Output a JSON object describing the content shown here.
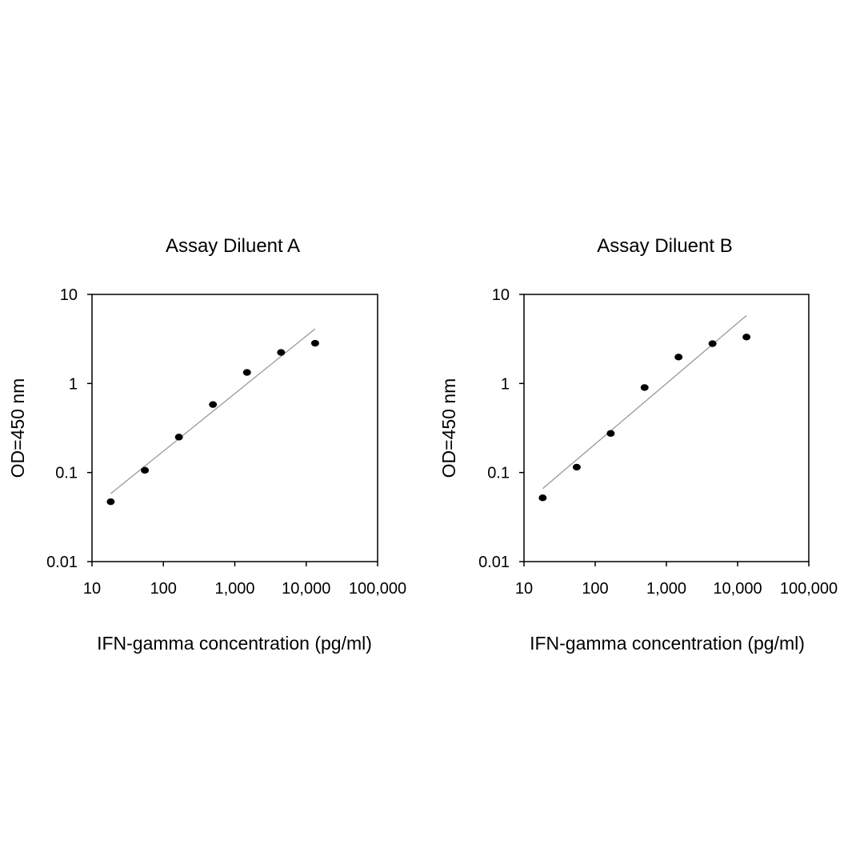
{
  "chart_data": [
    {
      "type": "scatter",
      "title": "Assay Diluent A",
      "xlabel": "IFN-gamma concentration (pg/ml)",
      "ylabel": "OD=450 nm",
      "x_scale": "log",
      "y_scale": "log",
      "xlim": [
        10,
        100000
      ],
      "ylim": [
        0.01,
        10
      ],
      "x_ticks": [
        10,
        100,
        1000,
        10000,
        100000
      ],
      "x_tick_labels": [
        "10",
        "100",
        "1,000",
        "10,000",
        "100,000"
      ],
      "y_ticks": [
        0.01,
        0.1,
        1,
        10
      ],
      "y_tick_labels": [
        "0.01",
        "0.1",
        "1",
        "10"
      ],
      "grid": false,
      "legend": "none",
      "series": [
        {
          "x": [
            18.3,
            55,
            165,
            494,
            1482,
            4444,
            13333
          ],
          "y": [
            0.047,
            0.106,
            0.25,
            0.58,
            1.33,
            2.23,
            2.83
          ]
        }
      ],
      "trendline": {
        "x": [
          18.3,
          13333
        ],
        "y": [
          0.058,
          4.1
        ]
      },
      "colors": {
        "points": "#000000",
        "trendline": "#999999",
        "axes": "#000000"
      }
    },
    {
      "type": "scatter",
      "title": "Assay Diluent B",
      "xlabel": "IFN-gamma concentration (pg/ml)",
      "ylabel": "OD=450 nm",
      "x_scale": "log",
      "y_scale": "log",
      "xlim": [
        10,
        100000
      ],
      "ylim": [
        0.01,
        10
      ],
      "x_ticks": [
        10,
        100,
        1000,
        10000,
        100000
      ],
      "x_tick_labels": [
        "10",
        "100",
        "1,000",
        "10,000",
        "100,000"
      ],
      "y_ticks": [
        0.01,
        0.1,
        1,
        10
      ],
      "y_tick_labels": [
        "0.01",
        "0.1",
        "1",
        "10"
      ],
      "grid": false,
      "legend": "none",
      "series": [
        {
          "x": [
            18.3,
            55,
            165,
            494,
            1482,
            4444,
            13333
          ],
          "y": [
            0.052,
            0.115,
            0.275,
            0.9,
            1.98,
            2.8,
            3.32
          ]
        }
      ],
      "trendline": {
        "x": [
          18.3,
          13333
        ],
        "y": [
          0.066,
          5.8
        ]
      },
      "colors": {
        "points": "#000000",
        "trendline": "#999999",
        "axes": "#000000"
      }
    }
  ]
}
